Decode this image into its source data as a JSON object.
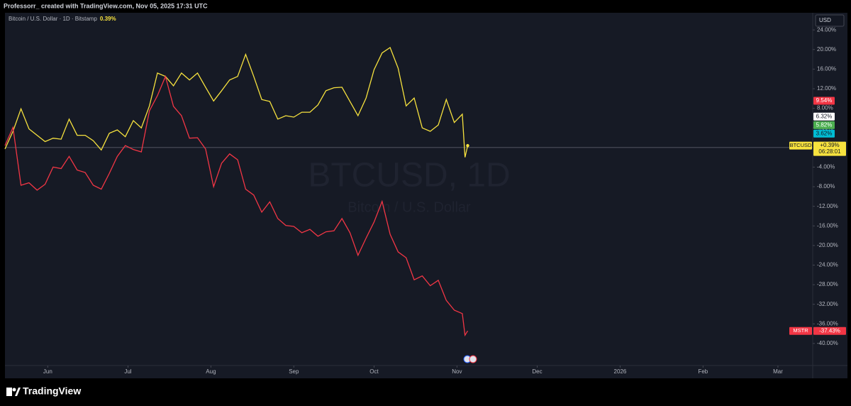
{
  "header": "Professorr_ created with TradingView.com, Nov 05, 2025 17:31 UTC",
  "footer": "TradingView",
  "chart_data": {
    "type": "line",
    "legend_title": "Bitcoin / U.S. Dollar · 1D · Bitstamp",
    "legend_change": "0.39%",
    "watermark": "BTCUSD, 1D",
    "watermark_sub": "Bitcoin / U.S. Dollar",
    "currency_button": "USD",
    "x": [
      0,
      3,
      6,
      9,
      12,
      15,
      18,
      21,
      24,
      27,
      30,
      33,
      36,
      39,
      42,
      45,
      48,
      51,
      54,
      57,
      60,
      63,
      66,
      69,
      72,
      75,
      78,
      81,
      84,
      87,
      90,
      93,
      96,
      99,
      102,
      105,
      108,
      111,
      114,
      117,
      120,
      123,
      126,
      129,
      132,
      135,
      138,
      141,
      144,
      147,
      150,
      153,
      156,
      159,
      162,
      165,
      168,
      171,
      172,
      173
    ],
    "xlim": [
      0,
      302
    ],
    "xticks": [
      {
        "value": 16,
        "label": "Jun"
      },
      {
        "value": 46,
        "label": "Jul"
      },
      {
        "value": 77,
        "label": "Aug"
      },
      {
        "value": 108,
        "label": "Sep"
      },
      {
        "value": 138,
        "label": "Oct"
      },
      {
        "value": 169,
        "label": "Nov"
      },
      {
        "value": 199,
        "label": "Dec"
      },
      {
        "value": 230,
        "label": "2026"
      },
      {
        "value": 261,
        "label": "Feb"
      },
      {
        "value": 289,
        "label": "Mar"
      }
    ],
    "ylim": [
      -44.5,
      27.5
    ],
    "yticks": [
      {
        "value": 24,
        "label": "24.00%"
      },
      {
        "value": 20,
        "label": "20.00%"
      },
      {
        "value": 16,
        "label": "16.00%"
      },
      {
        "value": 12,
        "label": "12.00%"
      },
      {
        "value": 8,
        "label": "8.00%"
      },
      {
        "value": 4,
        "label": "4.00%"
      },
      {
        "value": -4,
        "label": "-4.00%"
      },
      {
        "value": -8,
        "label": "-8.00%"
      },
      {
        "value": -12,
        "label": "-12.00%"
      },
      {
        "value": -16,
        "label": "-16.00%"
      },
      {
        "value": -20,
        "label": "-20.00%"
      },
      {
        "value": -24,
        "label": "-24.00%"
      },
      {
        "value": -28,
        "label": "-28.00%"
      },
      {
        "value": -32,
        "label": "-32.00%"
      },
      {
        "value": -36,
        "label": "-36.00%"
      },
      {
        "value": -40,
        "label": "-40.00%"
      }
    ],
    "series": [
      {
        "name": "BTCUSD",
        "color": "#f7e23e",
        "last_label": "+0.39%",
        "countdown": "06:28:01",
        "values": [
          -0.3,
          3.3,
          7.9,
          3.8,
          2.5,
          1.2,
          1.9,
          1.7,
          5.8,
          2.5,
          2.5,
          1.4,
          -0.5,
          2.9,
          3.6,
          2.2,
          5.5,
          4.0,
          8.5,
          15.2,
          14.5,
          12.6,
          15.2,
          13.8,
          15.2,
          12.3,
          9.5,
          11.6,
          13.8,
          14.5,
          19.0,
          14.5,
          9.8,
          9.4,
          5.8,
          6.5,
          6.2,
          7.2,
          7.2,
          8.7,
          11.6,
          12.2,
          12.3,
          9.4,
          6.5,
          10.1,
          15.9,
          19.3,
          20.4,
          16.2,
          8.5,
          10.1,
          4.0,
          3.3,
          4.6,
          9.8,
          5.1,
          6.8,
          -2.0,
          0.39
        ]
      },
      {
        "name": "MSTR",
        "color": "#f23645",
        "last_label": "-37.43%",
        "values": [
          0.4,
          4.1,
          -7.7,
          -7.2,
          -8.7,
          -7.5,
          -4.0,
          -4.3,
          -1.8,
          -4.6,
          -5.1,
          -7.7,
          -8.5,
          -5.3,
          -1.8,
          0.4,
          -0.4,
          -0.9,
          7.5,
          10.6,
          14.5,
          8.4,
          6.5,
          1.9,
          2.0,
          -0.3,
          -8.0,
          -3.2,
          -1.3,
          -2.5,
          -8.5,
          -9.7,
          -13.2,
          -11.1,
          -14.5,
          -15.9,
          -16.1,
          -17.4,
          -16.7,
          -18.1,
          -17.2,
          -17.0,
          -14.5,
          -17.4,
          -22.0,
          -18.5,
          -15.2,
          -11.0,
          -17.7,
          -21.3,
          -22.5,
          -27.0,
          -26.2,
          -28.2,
          -27.1,
          -31.2,
          -33.2,
          -33.9,
          -38.3,
          -37.43
        ]
      }
    ],
    "axis_badges": [
      {
        "value": 9.54,
        "label": "9.54%",
        "color": "#f23645",
        "text_color": "#ffffff"
      },
      {
        "value": 6.32,
        "label": "6.32%",
        "color": "#ffffff",
        "text_color": "#131722"
      },
      {
        "value": 5.82,
        "label": "5.82%",
        "color": "#4caf50",
        "text_color": "#ffffff"
      },
      {
        "value": 3.62,
        "label": "3.62%",
        "color": "#00bcd4",
        "text_color": "#131722"
      }
    ]
  }
}
